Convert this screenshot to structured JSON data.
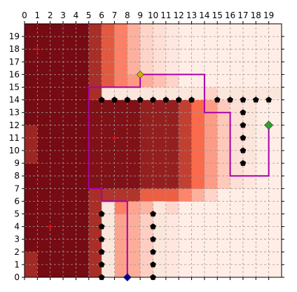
{
  "chart_data": {
    "type": "heatmap",
    "title": "",
    "xlabel": "",
    "ylabel": "",
    "xlim": [
      0,
      20
    ],
    "ylim": [
      0,
      20
    ],
    "x_ticks": [
      "0",
      "1",
      "2",
      "3",
      "4",
      "5",
      "6",
      "7",
      "8",
      "9",
      "10",
      "11",
      "12",
      "13",
      "14",
      "15",
      "16",
      "17",
      "18",
      "19"
    ],
    "y_ticks": [
      "0",
      "1",
      "2",
      "3",
      "4",
      "5",
      "6",
      "7",
      "8",
      "9",
      "10",
      "11",
      "12",
      "13",
      "14",
      "15",
      "16",
      "17",
      "18",
      "19"
    ],
    "x_tick_position": "top",
    "grid": true,
    "colormap": {
      "low": "#fff5f0",
      "mid": "#fb6a4a",
      "high": "#67000d"
    },
    "wall_cells": [
      [
        6,
        14
      ],
      [
        7,
        14
      ],
      [
        8,
        14
      ],
      [
        9,
        14
      ],
      [
        10,
        14
      ],
      [
        11,
        14
      ],
      [
        12,
        14
      ],
      [
        13,
        14
      ],
      [
        15,
        14
      ],
      [
        16,
        14
      ],
      [
        17,
        14
      ],
      [
        18,
        14
      ],
      [
        19,
        14
      ],
      [
        17,
        13
      ],
      [
        17,
        12
      ],
      [
        17,
        11
      ],
      [
        17,
        10
      ],
      [
        17,
        9
      ],
      [
        6,
        0
      ],
      [
        6,
        1
      ],
      [
        6,
        2
      ],
      [
        6,
        3
      ],
      [
        6,
        4
      ],
      [
        6,
        5
      ],
      [
        10,
        0
      ],
      [
        10,
        1
      ],
      [
        10,
        2
      ],
      [
        10,
        3
      ],
      [
        10,
        4
      ],
      [
        10,
        5
      ]
    ],
    "hotspots": [
      [
        1,
        18
      ],
      [
        2,
        4
      ],
      [
        7,
        11
      ]
    ],
    "start": [
      8,
      0
    ],
    "goal": [
      19,
      12
    ],
    "waypoint": [
      9,
      16
    ],
    "path": [
      [
        8,
        0
      ],
      [
        8,
        6
      ],
      [
        6,
        6
      ],
      [
        6,
        7
      ],
      [
        5,
        7
      ],
      [
        5,
        15
      ],
      [
        9,
        15
      ],
      [
        9,
        16
      ],
      [
        14,
        16
      ],
      [
        14,
        13
      ],
      [
        16,
        13
      ],
      [
        16,
        8
      ],
      [
        19,
        8
      ],
      [
        19,
        12
      ]
    ],
    "colors": {
      "wall": "#000000",
      "hotspot": "#e41a1c",
      "start": "#0000cc",
      "goal": "#2ca02c",
      "waypoint": "#d4b000",
      "path": "#aa00aa"
    }
  }
}
